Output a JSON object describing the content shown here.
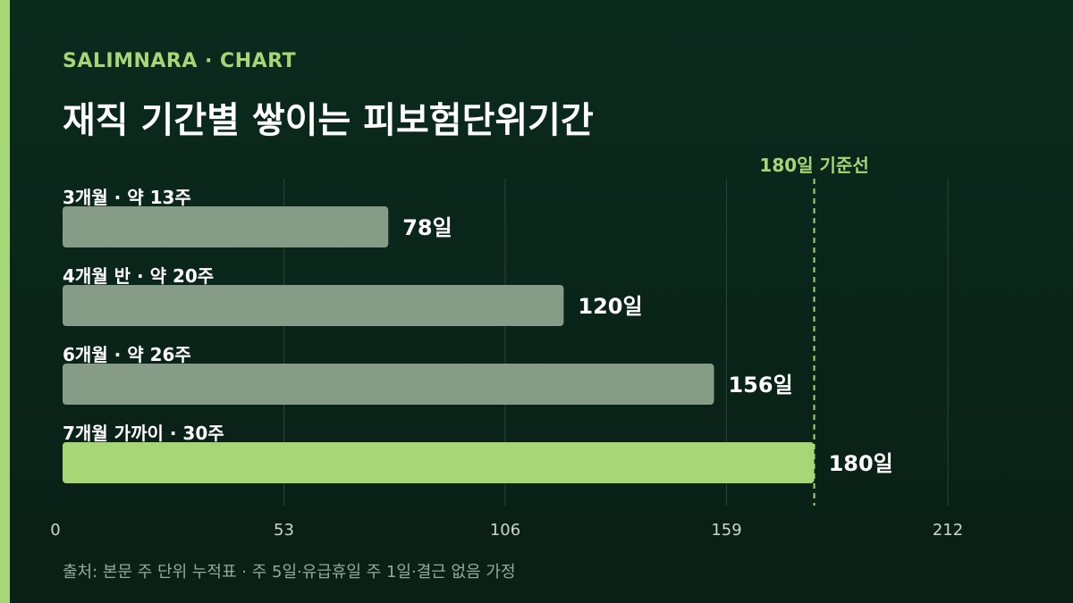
{
  "header": {
    "brand": "SALIMNARA · CHART",
    "title": "재직 기간별 쌓이는 피보험단위기간"
  },
  "footer": {
    "source": "출처: 본문 주 단위 누적표 · 주 5일·유급휴일 주 1일·결근 없음 가정"
  },
  "colors": {
    "accent": "#a6d676",
    "bar_default": "#879c87",
    "bar_highlight": "#a6d676",
    "grid": "#2a4536",
    "tick_text": "#c9d6cc",
    "background": "#0b2a1e"
  },
  "chart_data": {
    "type": "bar",
    "orientation": "horizontal",
    "categories": [
      "3개월 · 약 13주",
      "4개월 반 · 약 20주",
      "6개월 · 약 26주",
      "7개월 가까이 · 30주"
    ],
    "values": [
      78,
      120,
      156,
      180
    ],
    "value_labels": [
      "78일",
      "120일",
      "156일",
      "180일"
    ],
    "highlight_index": 3,
    "xlim": [
      0,
      212
    ],
    "xticks": [
      0,
      53,
      106,
      159,
      212
    ],
    "grid": true,
    "reference_line": {
      "value": 180,
      "label": "180일 기준선"
    }
  }
}
